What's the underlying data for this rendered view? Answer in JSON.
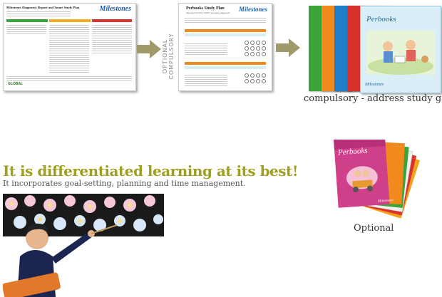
{
  "report_doc": {
    "title": "Milestones Diagnostic Report and Smart Study Plan",
    "logo": "Milestones",
    "footer_logo": "GLOBAL"
  },
  "study_plan_doc": {
    "title": "Perbooks Study Plan",
    "subtitle": "matched to every child's personal diagnosis",
    "logo": "Milestones"
  },
  "optional_label": "OPTIONAL COMPULSORY",
  "books": {
    "brand": "Perbooks",
    "series_logo": "Milestones"
  },
  "captions": {
    "compulsory": "compulsory - address study gaps",
    "optional": "Optional"
  },
  "headline": "It is differentiated learning at its best!",
  "subline": "It incorporates goal-setting, planning and time management.",
  "colors": {
    "headline": "#a0a020",
    "arrow": "#a09a6a",
    "book_green": "#3aa33a",
    "book_orange": "#f08a1c",
    "book_blue": "#1e7ec8",
    "book_red": "#d9322d",
    "book_magenta": "#d0408a"
  }
}
